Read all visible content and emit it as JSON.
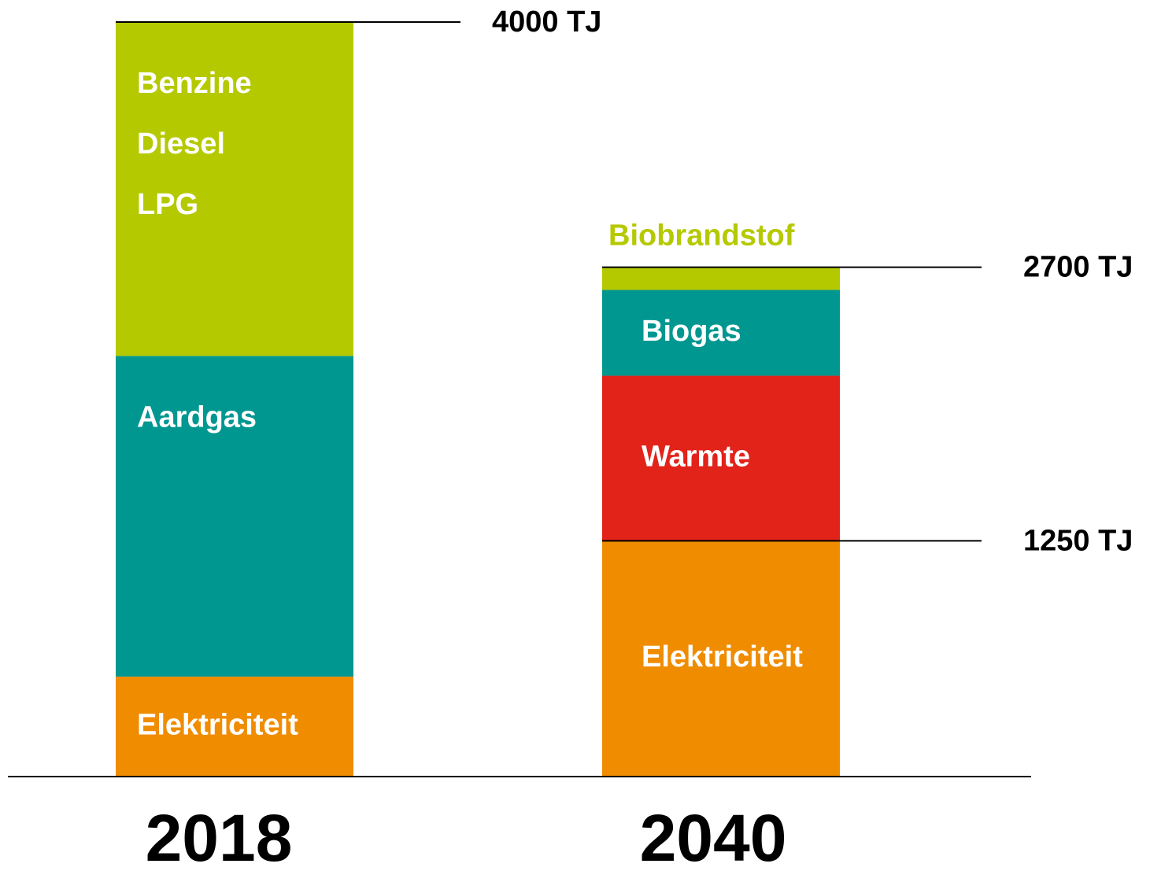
{
  "chart_data": {
    "type": "stacked-bar",
    "categories": [
      "2018",
      "2040"
    ],
    "series": [
      {
        "name": "Elektriciteit",
        "color": "#f08c00",
        "values": [
          530,
          1250
        ]
      },
      {
        "name": "Aardgas",
        "color": "#009790",
        "values": [
          1700,
          null
        ]
      },
      {
        "names": [
          "Benzine",
          "Diesel",
          "LPG"
        ],
        "color": "#b5c900",
        "values": [
          1770,
          null
        ]
      },
      {
        "name": "Warmte",
        "color": "#e2231a",
        "values": [
          null,
          875
        ]
      },
      {
        "name": "Biogas",
        "color": "#009790",
        "values": [
          null,
          455
        ]
      },
      {
        "name": "Biobrandstof",
        "color": "#b5c900",
        "values": [
          null,
          120
        ]
      }
    ],
    "reference_lines": [
      {
        "value": 4000,
        "label": "4000 TJ"
      },
      {
        "value": 2700,
        "label": "2700 TJ"
      },
      {
        "value": 1250,
        "label": "1250 TJ"
      }
    ],
    "ylim": [
      0,
      4000
    ]
  }
}
